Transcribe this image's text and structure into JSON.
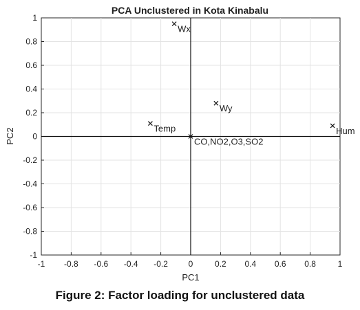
{
  "chart_data": {
    "type": "scatter",
    "title": "PCA Unclustered in Kota Kinabalu",
    "xlabel": "PC1",
    "ylabel": "PC2",
    "xlim": [
      -1,
      1
    ],
    "ylim": [
      -1,
      1
    ],
    "xticks": [
      "-1",
      "-0.8",
      "-0.6",
      "-0.4",
      "-0.2",
      "0",
      "0.2",
      "0.4",
      "0.6",
      "0.8",
      "1"
    ],
    "yticks": [
      "1",
      "0.8",
      "0.6",
      "0.4",
      "0.2",
      "0",
      "-0.2",
      "-0.4",
      "-0.6",
      "-0.8",
      "-1"
    ],
    "grid": true,
    "points": [
      {
        "label": "Wx",
        "x": -0.11,
        "y": 0.95
      },
      {
        "label": "Wy",
        "x": 0.17,
        "y": 0.28
      },
      {
        "label": "Temp",
        "x": -0.27,
        "y": 0.11
      },
      {
        "label": "Hum",
        "x": 0.95,
        "y": 0.09
      },
      {
        "label": "CO,NO2,O3,SO2",
        "x": 0.0,
        "y": 0.0
      }
    ]
  },
  "caption": "Figure 2: Factor loading for unclustered data"
}
